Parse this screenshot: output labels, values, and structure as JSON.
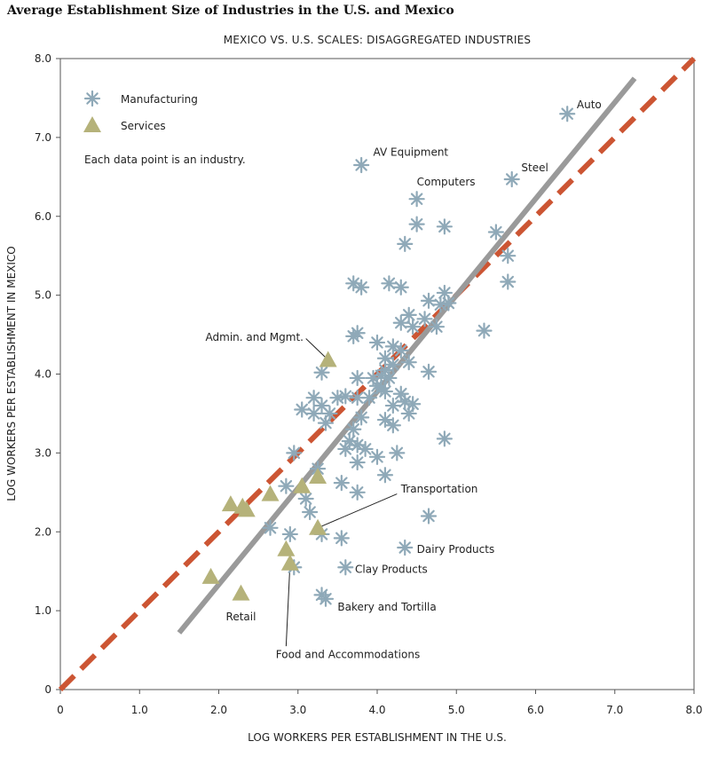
{
  "chart_data": {
    "type": "scatter",
    "title": "Average Establishment Size of Industries in the U.S. and Mexico",
    "subtitle": "MEXICO VS. U.S. SCALES: DISAGGREGATED INDUSTRIES",
    "xlabel": "LOG WORKERS PER ESTABLISHMENT IN THE U.S.",
    "ylabel": "LOG WORKERS PER ESTABLISHMENT IN MEXICO",
    "xlim": [
      0,
      8
    ],
    "ylim": [
      0,
      8
    ],
    "xticks": [
      "0",
      "1.0",
      "2.0",
      "3.0",
      "4.0",
      "5.0",
      "6.0",
      "7.0",
      "8.0"
    ],
    "yticks": [
      "0",
      "1.0",
      "2.0",
      "3.0",
      "4.0",
      "5.0",
      "6.0",
      "7.0",
      "8.0"
    ],
    "grid": false,
    "legend": {
      "placement": "top-left",
      "note": "Each data point is an industry."
    },
    "series": [
      {
        "name": "Manufacturing",
        "marker": "asterisk",
        "color": "#8fa9b8",
        "points": [
          [
            6.4,
            7.3
          ],
          [
            3.8,
            6.65
          ],
          [
            5.7,
            6.47
          ],
          [
            4.5,
            6.22
          ],
          [
            4.5,
            5.9
          ],
          [
            4.85,
            5.87
          ],
          [
            5.5,
            5.8
          ],
          [
            4.35,
            5.65
          ],
          [
            5.65,
            5.5
          ],
          [
            5.65,
            5.17
          ],
          [
            3.7,
            5.15
          ],
          [
            3.8,
            5.1
          ],
          [
            4.15,
            5.15
          ],
          [
            4.3,
            5.1
          ],
          [
            4.85,
            5.03
          ],
          [
            4.65,
            4.93
          ],
          [
            4.8,
            4.88
          ],
          [
            4.9,
            4.9
          ],
          [
            4.4,
            4.75
          ],
          [
            4.3,
            4.65
          ],
          [
            4.45,
            4.6
          ],
          [
            4.6,
            4.7
          ],
          [
            4.75,
            4.6
          ],
          [
            5.35,
            4.55
          ],
          [
            3.75,
            4.52
          ],
          [
            3.7,
            4.48
          ],
          [
            4.0,
            4.4
          ],
          [
            4.2,
            4.35
          ],
          [
            4.3,
            4.3
          ],
          [
            4.1,
            4.2
          ],
          [
            4.2,
            4.12
          ],
          [
            4.4,
            4.15
          ],
          [
            4.1,
            4.05
          ],
          [
            4.05,
            3.98
          ],
          [
            3.3,
            4.02
          ],
          [
            3.75,
            3.95
          ],
          [
            3.95,
            3.95
          ],
          [
            4.15,
            3.95
          ],
          [
            4.65,
            4.03
          ],
          [
            4.0,
            3.85
          ],
          [
            4.05,
            3.82
          ],
          [
            4.1,
            3.78
          ],
          [
            4.3,
            3.75
          ],
          [
            3.9,
            3.7
          ],
          [
            3.2,
            3.7
          ],
          [
            3.5,
            3.7
          ],
          [
            3.6,
            3.72
          ],
          [
            3.75,
            3.7
          ],
          [
            3.3,
            3.6
          ],
          [
            4.2,
            3.6
          ],
          [
            4.35,
            3.65
          ],
          [
            4.45,
            3.62
          ],
          [
            3.05,
            3.55
          ],
          [
            3.2,
            3.5
          ],
          [
            3.4,
            3.5
          ],
          [
            3.8,
            3.45
          ],
          [
            4.1,
            3.42
          ],
          [
            4.2,
            3.35
          ],
          [
            4.4,
            3.5
          ],
          [
            3.35,
            3.38
          ],
          [
            3.7,
            3.3
          ],
          [
            3.65,
            3.15
          ],
          [
            3.75,
            3.1
          ],
          [
            3.6,
            3.05
          ],
          [
            3.85,
            3.05
          ],
          [
            4.0,
            2.95
          ],
          [
            4.25,
            3.0
          ],
          [
            4.85,
            3.18
          ],
          [
            2.95,
            3.0
          ],
          [
            3.75,
            2.88
          ],
          [
            4.1,
            2.72
          ],
          [
            3.25,
            2.8
          ],
          [
            3.55,
            2.62
          ],
          [
            2.85,
            2.58
          ],
          [
            3.75,
            2.5
          ],
          [
            3.1,
            2.42
          ],
          [
            3.15,
            2.25
          ],
          [
            4.65,
            2.2
          ],
          [
            2.65,
            2.05
          ],
          [
            2.9,
            1.97
          ],
          [
            3.3,
            1.97
          ],
          [
            3.55,
            1.92
          ],
          [
            4.35,
            1.8
          ],
          [
            2.95,
            1.55
          ],
          [
            3.6,
            1.55
          ],
          [
            3.3,
            1.2
          ],
          [
            3.35,
            1.15
          ]
        ]
      },
      {
        "name": "Services",
        "marker": "triangle",
        "color": "#b5b27a",
        "points": [
          [
            3.38,
            4.18
          ],
          [
            2.15,
            2.35
          ],
          [
            2.3,
            2.32
          ],
          [
            2.35,
            2.28
          ],
          [
            2.65,
            2.48
          ],
          [
            3.05,
            2.58
          ],
          [
            3.25,
            2.7
          ],
          [
            3.25,
            2.05
          ],
          [
            2.85,
            1.78
          ],
          [
            2.9,
            1.6
          ],
          [
            1.9,
            1.43
          ],
          [
            2.28,
            1.22
          ]
        ]
      }
    ],
    "reference_lines": [
      {
        "style": "dashed",
        "color": "#cc5533",
        "x": [
          0,
          8
        ],
        "y": [
          0,
          8
        ]
      },
      {
        "style": "solid",
        "color": "#9a9a9a",
        "x": [
          1.5,
          7.25
        ],
        "y": [
          0.72,
          7.75
        ]
      }
    ],
    "annotations": [
      {
        "text": "Auto",
        "point": [
          6.4,
          7.3
        ],
        "label_at": [
          6.52,
          7.37
        ],
        "align": "start",
        "leader": false
      },
      {
        "text": "AV Equipment",
        "point": [
          3.8,
          6.65
        ],
        "label_at": [
          3.95,
          6.77
        ],
        "align": "start",
        "leader": false
      },
      {
        "text": "Steel",
        "point": [
          5.7,
          6.47
        ],
        "label_at": [
          5.82,
          6.57
        ],
        "align": "start",
        "leader": false
      },
      {
        "text": "Computers",
        "point": [
          4.5,
          6.22
        ],
        "label_at": [
          4.5,
          6.39
        ],
        "align": "start",
        "leader": false
      },
      {
        "text": "Admin. and Mgmt.",
        "point": [
          3.38,
          4.18
        ],
        "label_at": [
          3.07,
          4.42
        ],
        "align": "end",
        "leader": true,
        "leader_from": [
          3.1,
          4.45
        ]
      },
      {
        "text": "Transportation",
        "point": [
          3.25,
          2.05
        ],
        "label_at": [
          4.3,
          2.5
        ],
        "align": "start",
        "leader": true,
        "leader_from": [
          4.25,
          2.48
        ]
      },
      {
        "text": "Dairy Products",
        "point": [
          4.35,
          1.8
        ],
        "label_at": [
          4.5,
          1.73
        ],
        "align": "start",
        "leader": false
      },
      {
        "text": "Clay Products",
        "point": [
          3.6,
          1.55
        ],
        "label_at": [
          3.72,
          1.48
        ],
        "align": "start",
        "leader": false
      },
      {
        "text": "Bakery and Tortilla",
        "point": [
          3.35,
          1.15
        ],
        "label_at": [
          3.5,
          1.0
        ],
        "align": "start",
        "leader": false
      },
      {
        "text": "Retail",
        "point": [
          2.28,
          1.22
        ],
        "label_at": [
          2.28,
          0.88
        ],
        "align": "middle",
        "leader": false
      },
      {
        "text": "Food and Accommodations",
        "point": [
          2.9,
          1.6
        ],
        "label_at": [
          2.72,
          0.4
        ],
        "align": "start",
        "leader": true,
        "leader_from": [
          2.85,
          0.55
        ]
      }
    ]
  }
}
